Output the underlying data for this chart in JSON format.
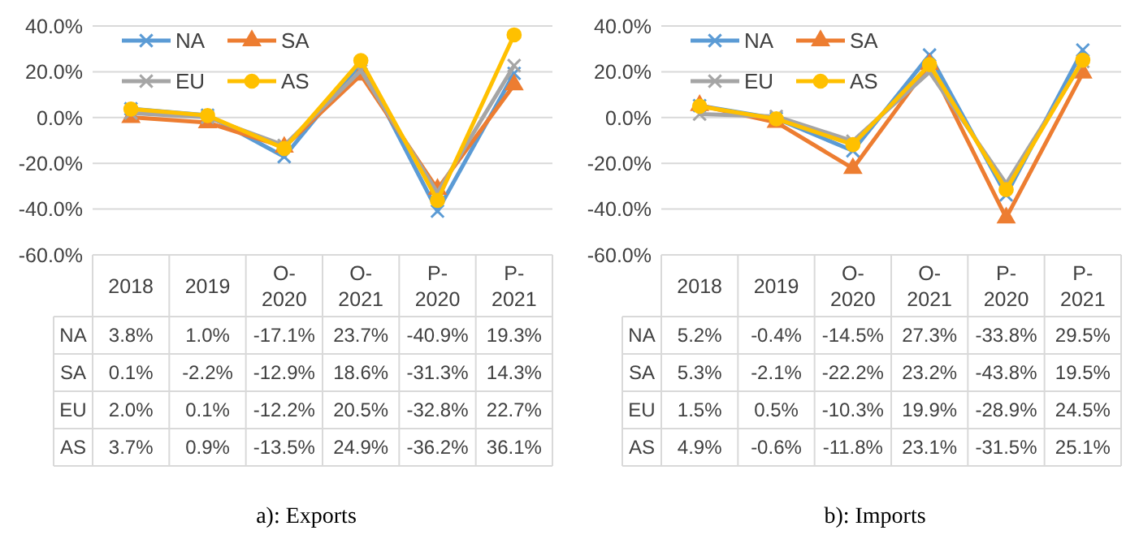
{
  "chart_data": [
    {
      "type": "line",
      "title": "a): Exports",
      "categories": [
        "2018",
        "2019",
        "O-2020",
        "O-2021",
        "P-2020",
        "P-2021"
      ],
      "ylim": [
        -60,
        40
      ],
      "yticks": [
        {
          "value": -60,
          "label": "-60.0%"
        },
        {
          "value": -40,
          "label": "-40.0%"
        },
        {
          "value": -20,
          "label": "-20.0%"
        },
        {
          "value": 0,
          "label": "0.0%"
        },
        {
          "value": 20,
          "label": "20.0%"
        },
        {
          "value": 40,
          "label": "40.0%"
        }
      ],
      "grid": "y",
      "legend": "top left",
      "series": [
        {
          "name": "NA",
          "color": "#5b9bd5",
          "marker": "cross",
          "values": [
            3.8,
            1.0,
            -17.1,
            23.7,
            -40.9,
            19.3
          ],
          "value_labels": [
            "3.8%",
            "1.0%",
            "-17.1%",
            "23.7%",
            "-40.9%",
            "19.3%"
          ]
        },
        {
          "name": "SA",
          "color": "#ed7d31",
          "marker": "triangle",
          "values": [
            0.1,
            -2.2,
            -12.9,
            18.6,
            -31.3,
            14.3
          ],
          "value_labels": [
            "0.1%",
            "-2.2%",
            "-12.9%",
            "18.6%",
            "-31.3%",
            "14.3%"
          ]
        },
        {
          "name": "EU",
          "color": "#a5a5a5",
          "marker": "cross",
          "values": [
            2.0,
            0.1,
            -12.2,
            20.5,
            -32.8,
            22.7
          ],
          "value_labels": [
            "2.0%",
            "0.1%",
            "-12.2%",
            "20.5%",
            "-32.8%",
            "22.7%"
          ]
        },
        {
          "name": "AS",
          "color": "#ffc000",
          "marker": "circle",
          "values": [
            3.7,
            0.9,
            -13.5,
            24.9,
            -36.2,
            36.1
          ],
          "value_labels": [
            "3.7%",
            "0.9%",
            "-13.5%",
            "24.9%",
            "-36.2%",
            "36.1%"
          ]
        }
      ]
    },
    {
      "type": "line",
      "title": "b): Imports",
      "categories": [
        "2018",
        "2019",
        "O-2020",
        "O-2021",
        "P-2020",
        "P-2021"
      ],
      "ylim": [
        -60,
        40
      ],
      "yticks": [
        {
          "value": -60,
          "label": "-60.0%"
        },
        {
          "value": -40,
          "label": "-40.0%"
        },
        {
          "value": -20,
          "label": "-20.0%"
        },
        {
          "value": 0,
          "label": "0.0%"
        },
        {
          "value": 20,
          "label": "20.0%"
        },
        {
          "value": 40,
          "label": "40.0%"
        }
      ],
      "grid": "y",
      "legend": "top left",
      "series": [
        {
          "name": "NA",
          "color": "#5b9bd5",
          "marker": "cross",
          "values": [
            5.2,
            -0.4,
            -14.5,
            27.3,
            -33.8,
            29.5
          ],
          "value_labels": [
            "5.2%",
            "-0.4%",
            "-14.5%",
            "27.3%",
            "-33.8%",
            "29.5%"
          ]
        },
        {
          "name": "SA",
          "color": "#ed7d31",
          "marker": "triangle",
          "values": [
            5.3,
            -2.1,
            -22.2,
            23.2,
            -43.8,
            19.5
          ],
          "value_labels": [
            "5.3%",
            "-2.1%",
            "-22.2%",
            "23.2%",
            "-43.8%",
            "19.5%"
          ]
        },
        {
          "name": "EU",
          "color": "#a5a5a5",
          "marker": "cross",
          "values": [
            1.5,
            0.5,
            -10.3,
            19.9,
            -28.9,
            24.5
          ],
          "value_labels": [
            "1.5%",
            "0.5%",
            "-10.3%",
            "19.9%",
            "-28.9%",
            "24.5%"
          ]
        },
        {
          "name": "AS",
          "color": "#ffc000",
          "marker": "circle",
          "values": [
            4.9,
            -0.6,
            -11.8,
            23.1,
            -31.5,
            25.1
          ],
          "value_labels": [
            "4.9%",
            "-0.6%",
            "-11.8%",
            "23.1%",
            "-31.5%",
            "25.1%"
          ]
        }
      ]
    }
  ]
}
